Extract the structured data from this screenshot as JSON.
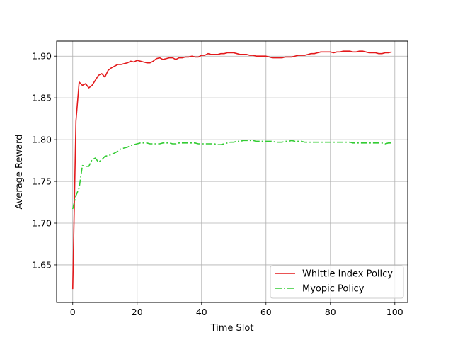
{
  "chart_data": {
    "type": "line",
    "xlabel": "Time Slot",
    "ylabel": "Average Reward",
    "xlim": [
      -5,
      104
    ],
    "ylim": [
      1.605,
      1.918
    ],
    "xticks": [
      0,
      20,
      40,
      60,
      80,
      100
    ],
    "yticks": [
      1.65,
      1.7,
      1.75,
      1.8,
      1.85,
      1.9
    ],
    "ytick_labels": [
      "1.65",
      "1.70",
      "1.75",
      "1.80",
      "1.85",
      "1.90"
    ],
    "xtick_labels": [
      "0",
      "20",
      "40",
      "60",
      "80",
      "100"
    ],
    "grid": true,
    "legend_position": "bottom-right",
    "series": [
      {
        "name": "Whittle Index Policy",
        "color": "#e31a1c",
        "style": "solid",
        "x": [
          0,
          1,
          2,
          3,
          4,
          5,
          6,
          7,
          8,
          9,
          10,
          11,
          12,
          13,
          14,
          15,
          16,
          17,
          18,
          19,
          20,
          21,
          22,
          23,
          24,
          25,
          26,
          27,
          28,
          29,
          30,
          31,
          32,
          33,
          34,
          35,
          36,
          37,
          38,
          39,
          40,
          41,
          42,
          43,
          44,
          45,
          46,
          47,
          48,
          49,
          50,
          51,
          52,
          53,
          54,
          55,
          56,
          57,
          58,
          59,
          60,
          61,
          62,
          63,
          64,
          65,
          66,
          67,
          68,
          69,
          70,
          71,
          72,
          73,
          74,
          75,
          76,
          77,
          78,
          79,
          80,
          81,
          82,
          83,
          84,
          85,
          86,
          87,
          88,
          89,
          90,
          91,
          92,
          93,
          94,
          95,
          96,
          97,
          98,
          99
        ],
        "y": [
          1.621,
          1.822,
          1.869,
          1.865,
          1.867,
          1.862,
          1.865,
          1.871,
          1.877,
          1.879,
          1.875,
          1.883,
          1.886,
          1.888,
          1.89,
          1.89,
          1.891,
          1.892,
          1.894,
          1.893,
          1.895,
          1.894,
          1.893,
          1.892,
          1.892,
          1.894,
          1.897,
          1.898,
          1.896,
          1.897,
          1.898,
          1.898,
          1.896,
          1.898,
          1.898,
          1.899,
          1.899,
          1.9,
          1.899,
          1.899,
          1.901,
          1.901,
          1.903,
          1.902,
          1.902,
          1.902,
          1.903,
          1.903,
          1.904,
          1.904,
          1.904,
          1.903,
          1.902,
          1.902,
          1.902,
          1.901,
          1.901,
          1.9,
          1.9,
          1.9,
          1.9,
          1.899,
          1.898,
          1.898,
          1.898,
          1.898,
          1.899,
          1.899,
          1.899,
          1.9,
          1.901,
          1.901,
          1.901,
          1.902,
          1.903,
          1.903,
          1.904,
          1.905,
          1.905,
          1.905,
          1.905,
          1.904,
          1.905,
          1.905,
          1.906,
          1.906,
          1.906,
          1.905,
          1.905,
          1.906,
          1.906,
          1.905,
          1.904,
          1.904,
          1.904,
          1.903,
          1.903,
          1.904,
          1.904,
          1.905
        ]
      },
      {
        "name": "Myopic Policy",
        "color": "#33cc33",
        "style": "dashdot",
        "x": [
          0,
          1,
          2,
          3,
          4,
          5,
          6,
          7,
          8,
          9,
          10,
          11,
          12,
          13,
          14,
          15,
          16,
          17,
          18,
          19,
          20,
          21,
          22,
          23,
          24,
          25,
          26,
          27,
          28,
          29,
          30,
          31,
          32,
          33,
          34,
          35,
          36,
          37,
          38,
          39,
          40,
          41,
          42,
          43,
          44,
          45,
          46,
          47,
          48,
          49,
          50,
          51,
          52,
          53,
          54,
          55,
          56,
          57,
          58,
          59,
          60,
          61,
          62,
          63,
          64,
          65,
          66,
          67,
          68,
          69,
          70,
          71,
          72,
          73,
          74,
          75,
          76,
          77,
          78,
          79,
          80,
          81,
          82,
          83,
          84,
          85,
          86,
          87,
          88,
          89,
          90,
          91,
          92,
          93,
          94,
          95,
          96,
          97,
          98,
          99
        ],
        "y": [
          1.717,
          1.733,
          1.742,
          1.769,
          1.768,
          1.768,
          1.776,
          1.778,
          1.773,
          1.776,
          1.78,
          1.781,
          1.782,
          1.784,
          1.786,
          1.789,
          1.79,
          1.791,
          1.793,
          1.794,
          1.795,
          1.796,
          1.796,
          1.796,
          1.795,
          1.795,
          1.795,
          1.795,
          1.796,
          1.796,
          1.796,
          1.795,
          1.795,
          1.796,
          1.796,
          1.796,
          1.796,
          1.796,
          1.796,
          1.795,
          1.795,
          1.795,
          1.795,
          1.795,
          1.795,
          1.794,
          1.794,
          1.795,
          1.796,
          1.797,
          1.797,
          1.798,
          1.798,
          1.799,
          1.799,
          1.799,
          1.799,
          1.798,
          1.798,
          1.798,
          1.798,
          1.798,
          1.798,
          1.797,
          1.797,
          1.797,
          1.798,
          1.798,
          1.799,
          1.798,
          1.798,
          1.798,
          1.797,
          1.797,
          1.797,
          1.797,
          1.797,
          1.797,
          1.797,
          1.797,
          1.797,
          1.797,
          1.797,
          1.797,
          1.797,
          1.797,
          1.797,
          1.796,
          1.796,
          1.796,
          1.796,
          1.796,
          1.796,
          1.796,
          1.796,
          1.796,
          1.796,
          1.795,
          1.796,
          1.796
        ]
      }
    ]
  }
}
